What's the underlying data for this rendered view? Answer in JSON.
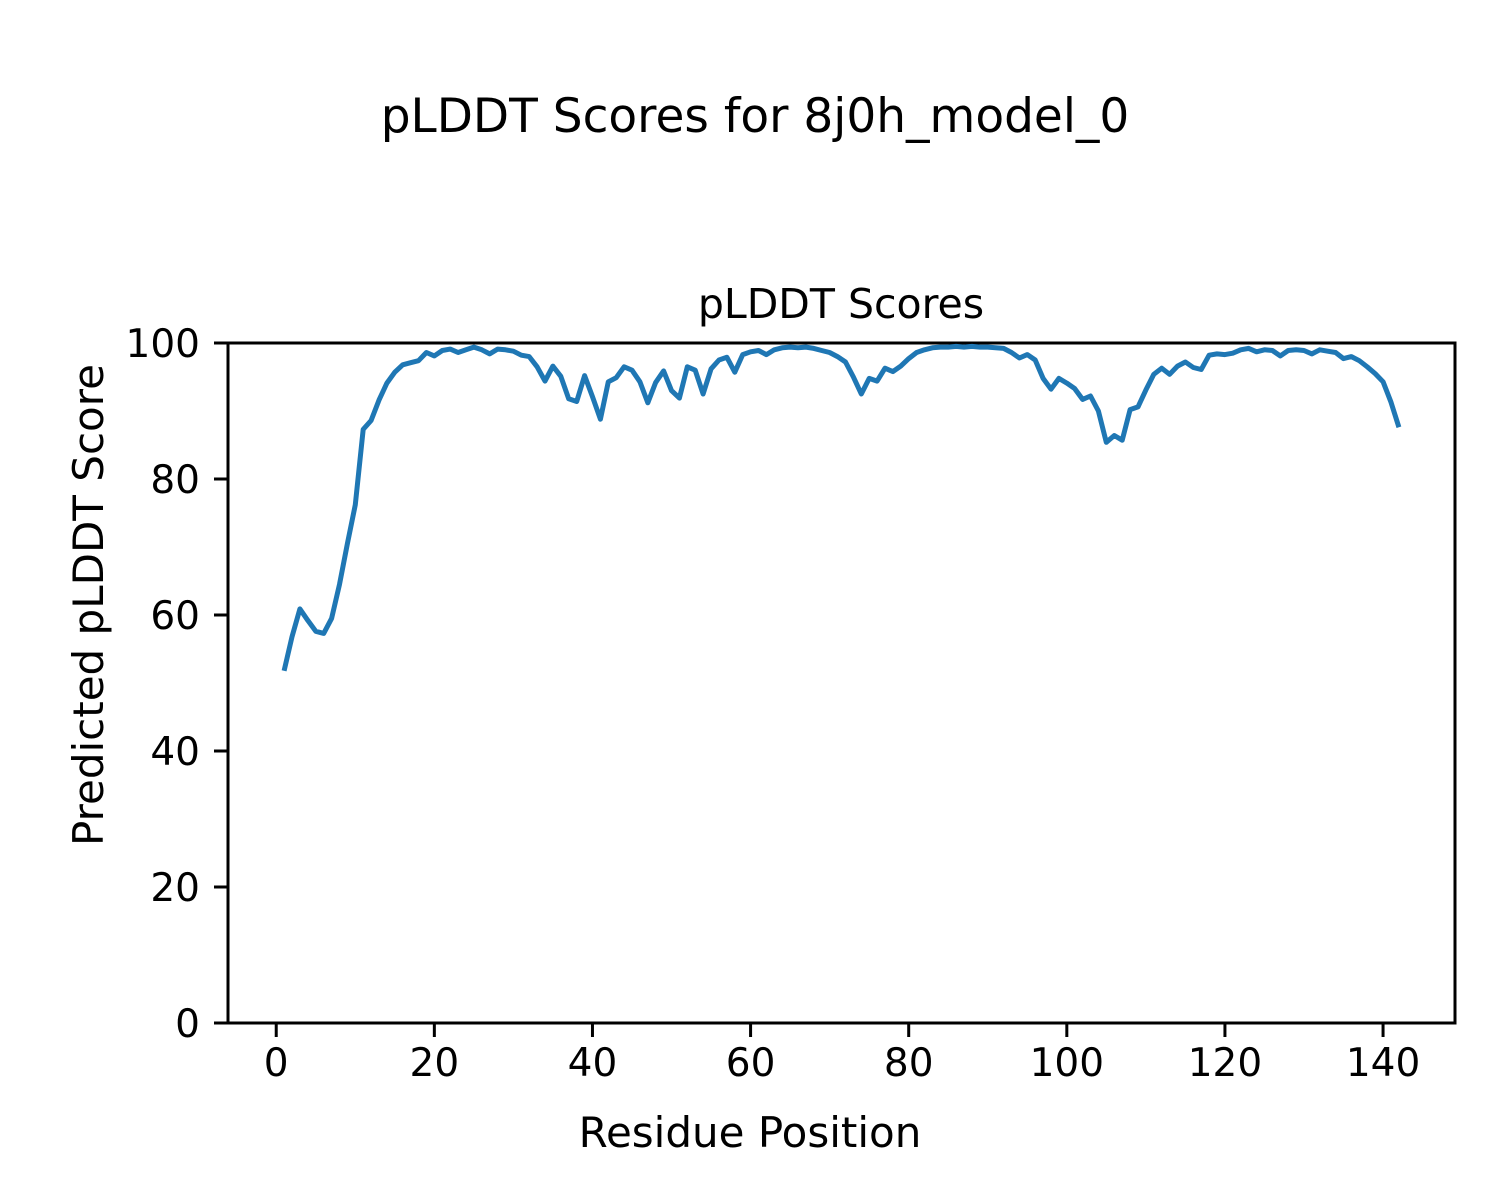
{
  "figure": {
    "suptitle": "pLDDT Scores for 8j0h_model_0",
    "background": "#ffffff",
    "frame_color": "#000000"
  },
  "chart_data": {
    "type": "line",
    "title": "pLDDT Scores",
    "xlabel": "Residue Position",
    "ylabel": "Predicted pLDDT Score",
    "xlim": [
      -6.1,
      149.1
    ],
    "ylim": [
      0,
      100
    ],
    "xticks": [
      0,
      20,
      40,
      60,
      80,
      100,
      120,
      140
    ],
    "yticks": [
      0,
      20,
      40,
      60,
      80,
      100
    ],
    "grid": false,
    "legend": "none",
    "line_color": "#1f77b4",
    "line_width": 5,
    "series": [
      {
        "name": "pLDDT",
        "x": [
          1,
          2,
          3,
          4,
          5,
          6,
          7,
          8,
          9,
          10,
          11,
          12,
          13,
          14,
          15,
          16,
          17,
          18,
          19,
          20,
          21,
          22,
          23,
          24,
          25,
          26,
          27,
          28,
          29,
          30,
          31,
          32,
          33,
          34,
          35,
          36,
          37,
          38,
          39,
          40,
          41,
          42,
          43,
          44,
          45,
          46,
          47,
          48,
          49,
          50,
          51,
          52,
          53,
          54,
          55,
          56,
          57,
          58,
          59,
          60,
          61,
          62,
          63,
          64,
          65,
          66,
          67,
          68,
          69,
          70,
          71,
          72,
          73,
          74,
          75,
          76,
          77,
          78,
          79,
          80,
          81,
          82,
          83,
          84,
          85,
          86,
          87,
          88,
          89,
          90,
          91,
          92,
          93,
          94,
          95,
          96,
          97,
          98,
          99,
          100,
          101,
          102,
          103,
          104,
          105,
          106,
          107,
          108,
          109,
          110,
          111,
          112,
          113,
          114,
          115,
          116,
          117,
          118,
          119,
          120,
          121,
          122,
          123,
          124,
          125,
          126,
          127,
          128,
          129,
          130,
          131,
          132,
          133,
          134,
          135,
          136,
          137,
          138,
          139,
          140,
          141,
          142
        ],
        "y": [
          51.8,
          56.8,
          60.9,
          59.2,
          57.6,
          57.3,
          59.5,
          64.5,
          70.5,
          76.2,
          87.3,
          88.6,
          91.6,
          94.1,
          95.7,
          96.8,
          97.1,
          97.4,
          98.6,
          98.1,
          98.9,
          99.1,
          98.6,
          99.0,
          99.4,
          99.0,
          98.4,
          99.1,
          99.0,
          98.8,
          98.2,
          98.0,
          96.5,
          94.4,
          96.6,
          95.1,
          91.8,
          91.4,
          95.2,
          92.1,
          88.8,
          94.3,
          94.9,
          96.5,
          96.0,
          94.3,
          91.2,
          94.2,
          95.9,
          93.0,
          91.9,
          96.5,
          96.0,
          92.5,
          96.2,
          97.5,
          97.9,
          95.7,
          98.3,
          98.7,
          98.9,
          98.3,
          99.0,
          99.3,
          99.4,
          99.3,
          99.4,
          99.2,
          98.9,
          98.6,
          98.0,
          97.2,
          95.0,
          92.5,
          94.8,
          94.4,
          96.3,
          95.8,
          96.6,
          97.7,
          98.6,
          99.0,
          99.3,
          99.4,
          99.4,
          99.5,
          99.4,
          99.5,
          99.4,
          99.4,
          99.3,
          99.2,
          98.6,
          97.8,
          98.3,
          97.5,
          94.8,
          93.2,
          94.8,
          94.1,
          93.3,
          91.7,
          92.2,
          90.0,
          85.4,
          86.4,
          85.7,
          90.2,
          90.6,
          93.1,
          95.4,
          96.3,
          95.4,
          96.6,
          97.2,
          96.4,
          96.1,
          98.2,
          98.4,
          98.3,
          98.5,
          99.0,
          99.2,
          98.7,
          99.0,
          98.9,
          98.1,
          98.9,
          99.0,
          98.9,
          98.4,
          99.0,
          98.8,
          98.6,
          97.7,
          98.0,
          97.4,
          96.5,
          95.5,
          94.3,
          91.3,
          87.6
        ]
      }
    ]
  }
}
